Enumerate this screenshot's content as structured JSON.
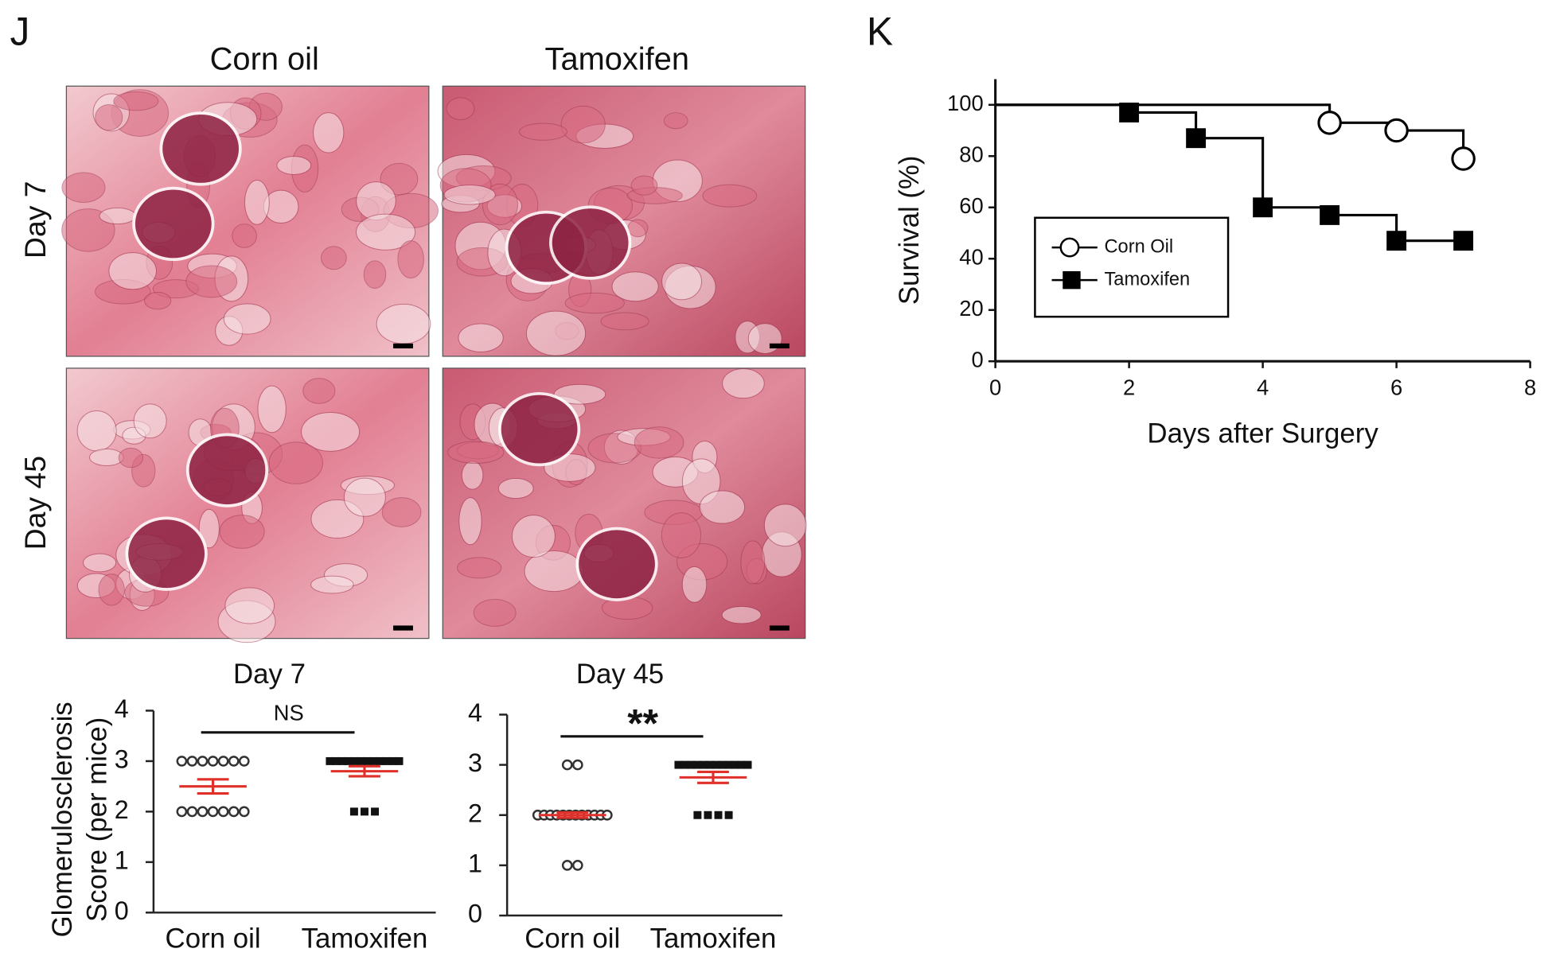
{
  "panel_labels": [
    "J",
    "K"
  ],
  "histology": {
    "columns": [
      "Corn oil",
      "Tamoxifen"
    ],
    "rows": [
      "Day 7",
      "Day 45"
    ]
  },
  "chart_data": [
    {
      "type": "dot",
      "title": "Day 7",
      "y_label": [
        "Glomerulosclerosis",
        "Score (per mice)"
      ],
      "categories": [
        "Corn oil",
        "Tamoxifen"
      ],
      "groups": [
        {
          "values": [
            3,
            3,
            3,
            3,
            3,
            3,
            3,
            2,
            2,
            2,
            2,
            2,
            2,
            2
          ],
          "mean": 2.5,
          "sem": 0.14,
          "marker": "open-circle",
          "color": "#333333"
        },
        {
          "values": [
            3,
            3,
            3,
            3,
            3,
            3,
            3,
            3,
            3,
            3,
            3,
            3,
            2,
            2,
            2
          ],
          "mean": 2.8,
          "sem": 0.1,
          "marker": "square",
          "color": "#111111"
        }
      ],
      "summary_color": "#e0302a",
      "significance": "NS",
      "ylim": [
        0,
        4
      ],
      "yticks": [
        0,
        1,
        2,
        3,
        4
      ]
    },
    {
      "type": "dot",
      "title": "Day 45",
      "categories": [
        "Corn oil",
        "Tamoxifen"
      ],
      "groups": [
        {
          "values": [
            3,
            3,
            2,
            2,
            2,
            2,
            2,
            2,
            2,
            2,
            2,
            2,
            2,
            2,
            1,
            1
          ],
          "mean": 2.0,
          "sem": 0.05,
          "marker": "open-circle",
          "color": "#333333"
        },
        {
          "values": [
            3,
            3,
            3,
            3,
            3,
            3,
            3,
            3,
            3,
            3,
            3,
            3,
            2,
            2,
            2,
            2
          ],
          "mean": 2.75,
          "sem": 0.11,
          "marker": "square",
          "color": "#111111"
        }
      ],
      "summary_color": "#e0302a",
      "significance": "**",
      "ylim": [
        0,
        4
      ],
      "yticks": [
        0,
        1,
        2,
        3,
        4
      ]
    },
    {
      "type": "step",
      "x_label": "Days after Surgery",
      "y_label": "Survival (%)",
      "series": [
        {
          "name": "Corn Oil",
          "marker": "open-circle",
          "x": [
            0,
            5,
            6,
            7
          ],
          "values": [
            100,
            93,
            90,
            79
          ]
        },
        {
          "name": "Tamoxifen",
          "marker": "square",
          "x": [
            0,
            2,
            3,
            4,
            5,
            6,
            7
          ],
          "values": [
            100,
            97,
            87,
            60,
            57,
            47,
            47
          ]
        }
      ],
      "xlim": [
        0,
        8
      ],
      "xticks": [
        0,
        2,
        4,
        6,
        8
      ],
      "ylim": [
        0,
        110
      ],
      "yticks": [
        0,
        20,
        40,
        60,
        80,
        100
      ],
      "legend": "center-left"
    }
  ]
}
